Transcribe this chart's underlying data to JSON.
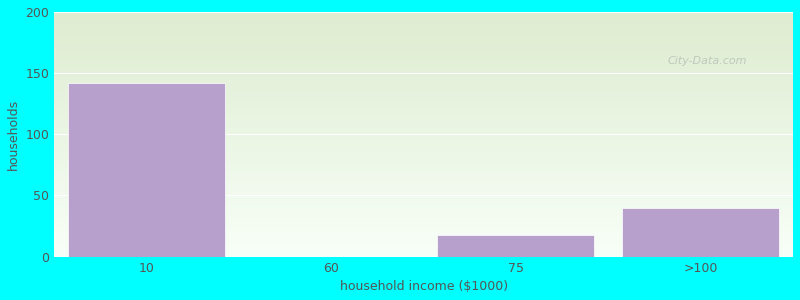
{
  "xlabel": "household income ($1000)",
  "ylabel": "households",
  "background_color": "#00FFFF",
  "bar_color": "#b8a0cc",
  "bar_edge_color": "#ffffff",
  "categories": [
    "10",
    "60",
    "75",
    ">100"
  ],
  "values": [
    142,
    0,
    18,
    40
  ],
  "ylim": [
    0,
    200
  ],
  "yticks": [
    0,
    50,
    100,
    150,
    200
  ],
  "title_fontsize": 13,
  "subtitle_fontsize": 10,
  "subtitle_color": "#1a9aa0",
  "axis_label_fontsize": 9,
  "tick_fontsize": 9,
  "title_color": "#111111",
  "tick_color": "#555555",
  "watermark": "City-Data.com",
  "grad_top": "#deecd0",
  "grad_bottom": "#f8fff8",
  "xlim": [
    -0.5,
    3.5
  ]
}
